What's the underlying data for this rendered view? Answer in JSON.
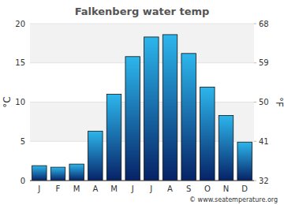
{
  "chart_data": {
    "type": "bar",
    "title": "Falkenberg water temp",
    "categories": [
      "J",
      "F",
      "M",
      "A",
      "M",
      "J",
      "J",
      "A",
      "S",
      "O",
      "N",
      "D"
    ],
    "values": [
      1.9,
      1.7,
      2.1,
      6.3,
      11.0,
      15.8,
      18.3,
      18.6,
      16.2,
      11.9,
      8.3,
      4.9
    ],
    "color": "#2cb6ec",
    "y_label": "°C",
    "y2_label": "°F",
    "ylim": [
      0,
      20
    ],
    "yticks": [
      0,
      5,
      10,
      15,
      20
    ],
    "y2lim": [
      32,
      68
    ],
    "y2ticks": [
      32,
      41,
      50,
      59,
      68
    ],
    "grid": true,
    "annotations": [
      "© www.seatemperature.org"
    ]
  }
}
